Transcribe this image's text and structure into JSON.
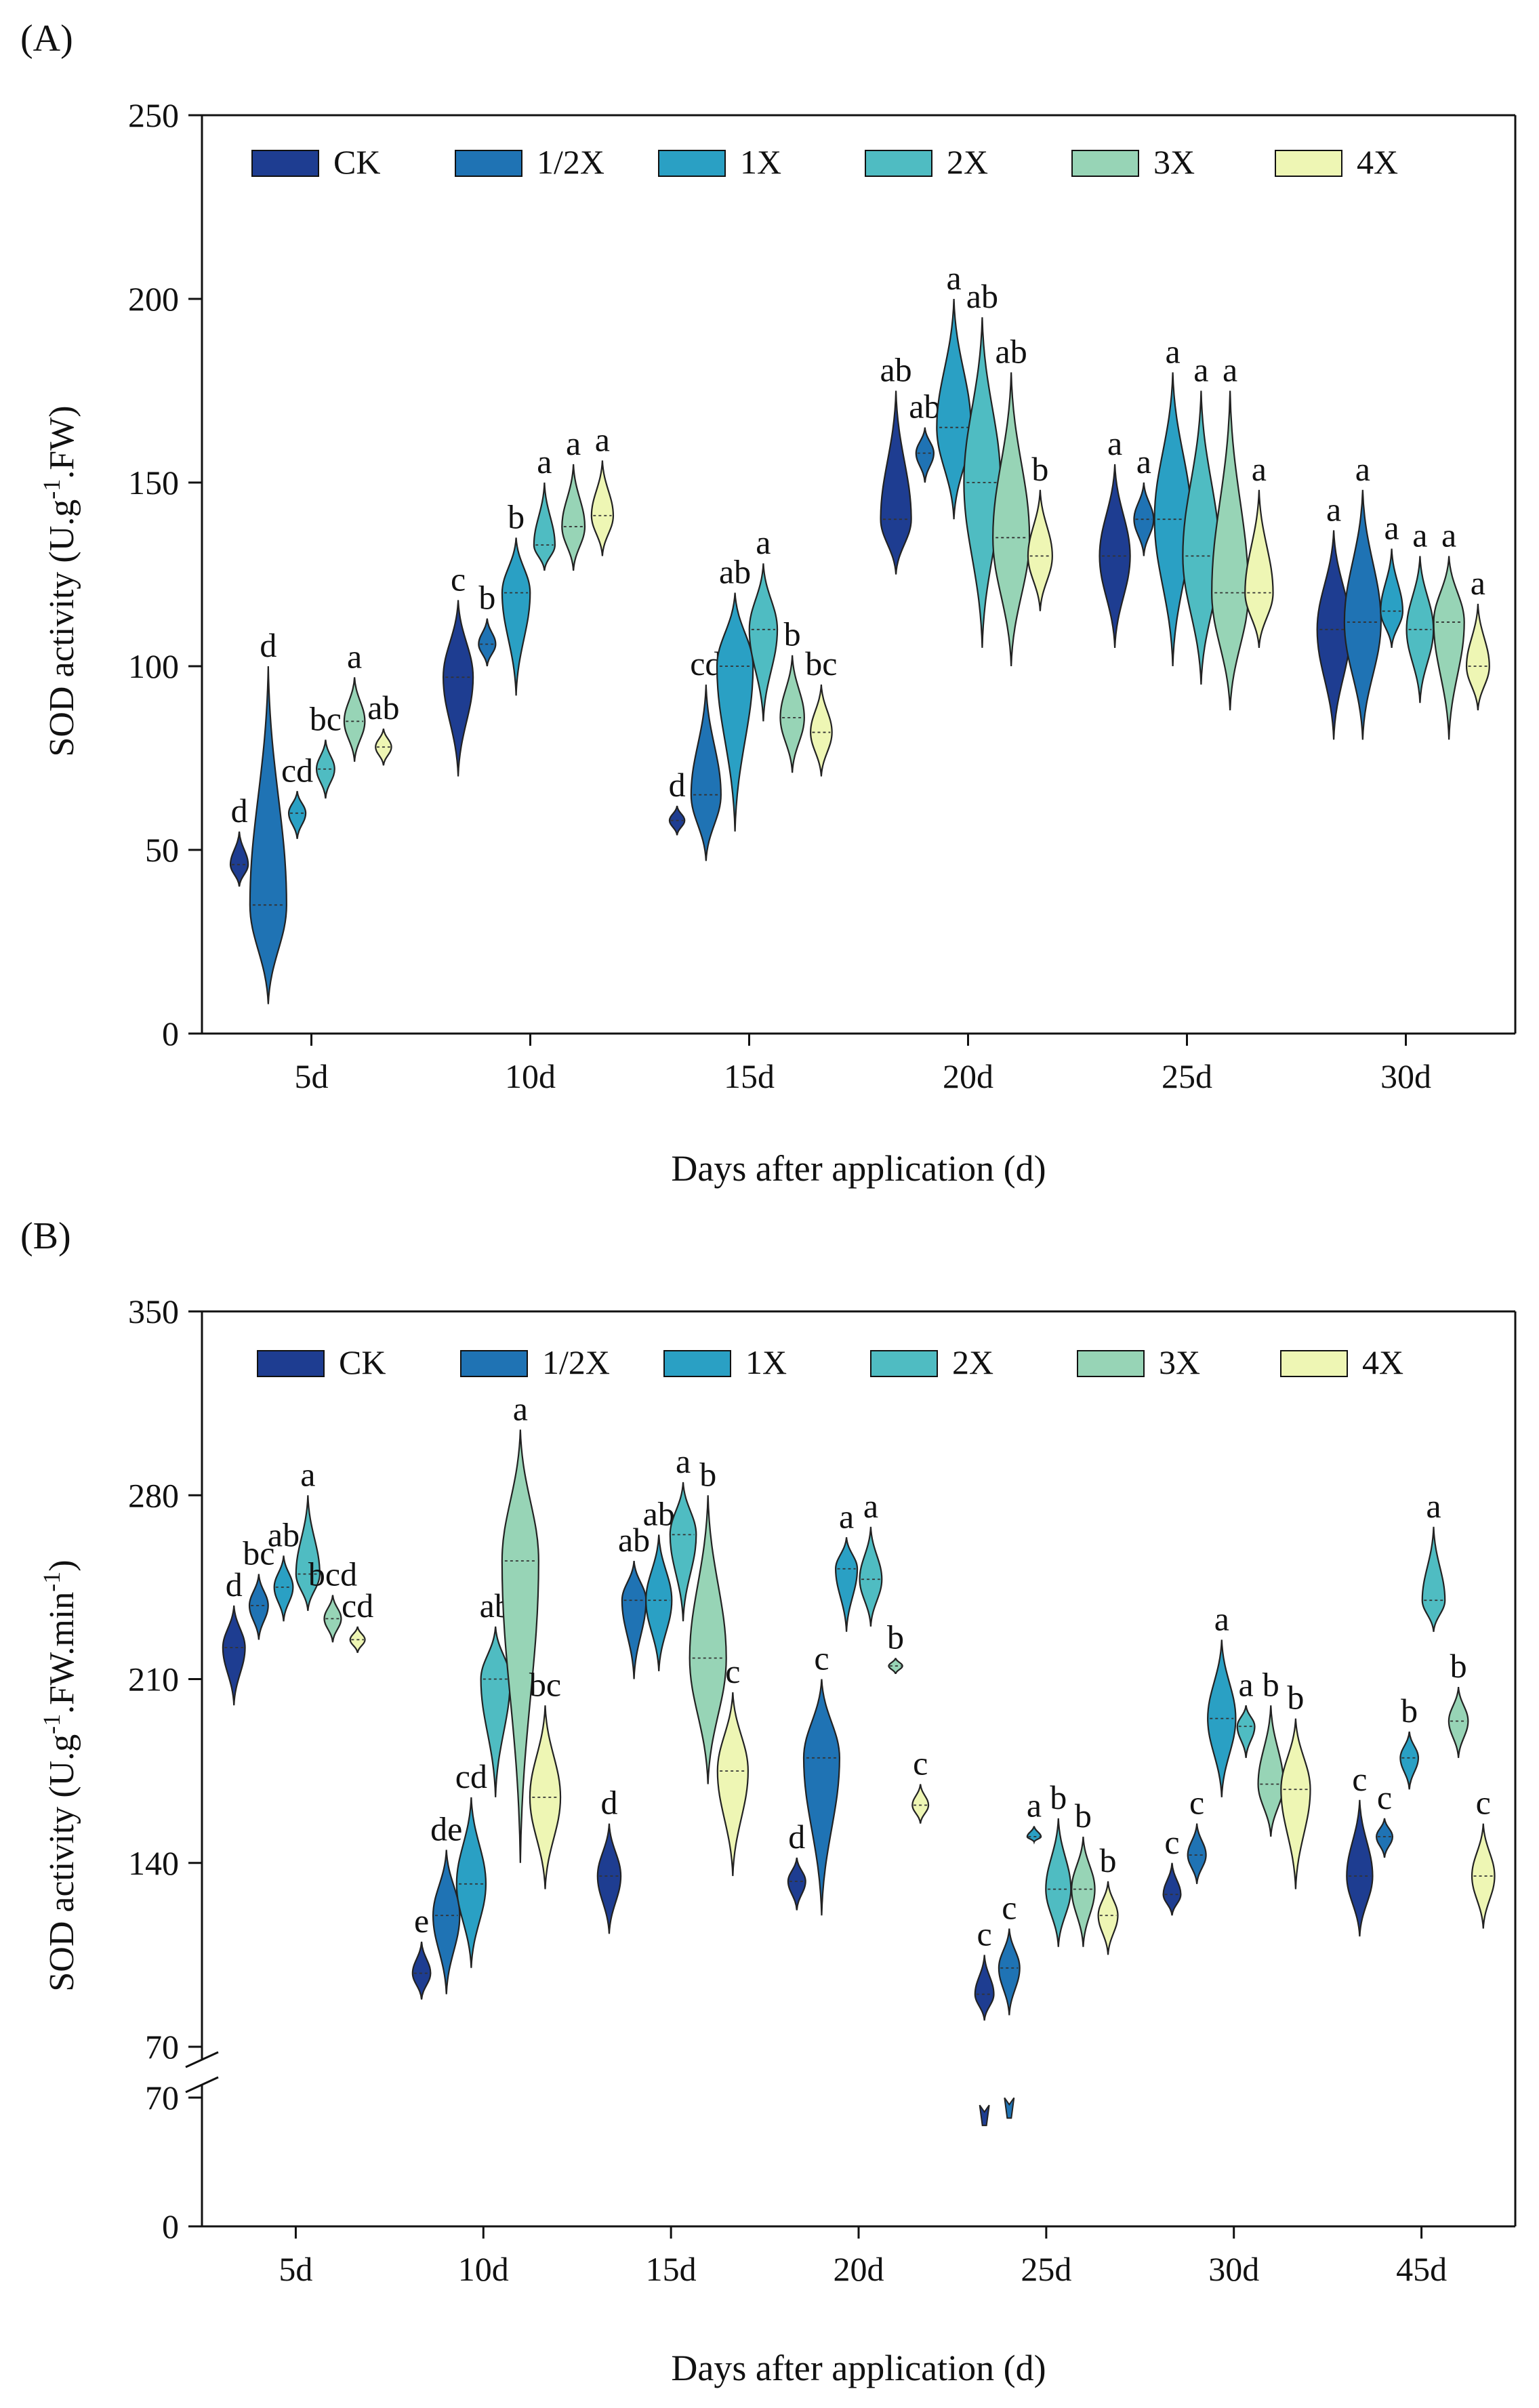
{
  "legend": [
    "CK",
    "1/2X",
    "1X",
    "2X",
    "3X",
    "4X"
  ],
  "colors": {
    "CK": "#1e3d91",
    "1/2X": "#1f73b4",
    "1X": "#2aa0c4",
    "2X": "#4fbcc2",
    "3X": "#97d4b6",
    "4X": "#eef6b4"
  },
  "chart_data": [
    {
      "panel_label": "(A)",
      "type": "violin",
      "xlabel": "Days after application (d)",
      "ylabel": "SOD activity (U.g",
      "ylabel_sup": "-1",
      "ylabel_tail": ".FW)",
      "ylim": [
        0,
        250
      ],
      "yticks": [
        "0",
        "50",
        "100",
        "150",
        "200",
        "250"
      ],
      "categories": [
        "5d",
        "10d",
        "15d",
        "20d",
        "25d",
        "30d"
      ],
      "series": [
        {
          "name": "CK",
          "medians": [
            46,
            97,
            58,
            140,
            130,
            110
          ],
          "mins": [
            40,
            70,
            54,
            125,
            105,
            80
          ],
          "maxs": [
            55,
            118,
            62,
            175,
            155,
            137
          ],
          "letters": [
            "d",
            "c",
            "d",
            "ab",
            "a",
            "a"
          ]
        },
        {
          "name": "1/2X",
          "medians": [
            35,
            106,
            65,
            158,
            140,
            112
          ],
          "mins": [
            8,
            100,
            47,
            150,
            130,
            80
          ],
          "maxs": [
            100,
            113,
            95,
            165,
            150,
            148
          ],
          "letters": [
            "d",
            "b",
            "cd",
            "ab",
            "a",
            "a"
          ]
        },
        {
          "name": "1X",
          "medians": [
            60,
            120,
            100,
            165,
            140,
            115
          ],
          "mins": [
            53,
            92,
            55,
            140,
            100,
            105
          ],
          "maxs": [
            66,
            135,
            120,
            200,
            180,
            132
          ],
          "letters": [
            "cd",
            "b",
            "ab",
            "a",
            "a",
            "a"
          ]
        },
        {
          "name": "2X",
          "medians": [
            72,
            133,
            110,
            150,
            130,
            110
          ],
          "mins": [
            64,
            126,
            85,
            105,
            95,
            90
          ],
          "maxs": [
            80,
            150,
            128,
            195,
            175,
            130
          ],
          "letters": [
            "bc",
            "a",
            "a",
            "ab",
            "a",
            "a"
          ]
        },
        {
          "name": "3X",
          "medians": [
            85,
            138,
            86,
            135,
            120,
            112
          ],
          "mins": [
            74,
            126,
            71,
            100,
            88,
            80
          ],
          "maxs": [
            97,
            155,
            103,
            180,
            175,
            130
          ],
          "letters": [
            "a",
            "a",
            "b",
            "ab",
            "a",
            "a"
          ]
        },
        {
          "name": "4X",
          "medians": [
            78,
            141,
            82,
            130,
            120,
            100
          ],
          "mins": [
            73,
            130,
            70,
            115,
            105,
            88
          ],
          "maxs": [
            83,
            156,
            95,
            148,
            148,
            117
          ],
          "letters": [
            "ab",
            "a",
            "bc",
            "b",
            "a",
            "a"
          ]
        }
      ]
    },
    {
      "panel_label": "(B)",
      "type": "violin",
      "xlabel": "Days after application (d)",
      "ylabel": "SOD activity (U.g",
      "ylabel_sup": "-1",
      "ylabel_tail": ".FW.min",
      "ylabel_sup2": "-1",
      "ylabel_end": ")",
      "axis_break": true,
      "ylim_upper": [
        70,
        350
      ],
      "ylim_lower": [
        0,
        70
      ],
      "yticks_upper": [
        "70",
        "140",
        "210",
        "280",
        "350"
      ],
      "yticks_lower": [
        "0",
        "70"
      ],
      "categories": [
        "5d",
        "10d",
        "15d",
        "20d",
        "25d",
        "30d",
        "45d"
      ],
      "series": [
        {
          "name": "CK",
          "medians": [
            222,
            98,
            135,
            133,
            90,
            128,
            135
          ],
          "mins": [
            200,
            88,
            113,
            122,
            80,
            120,
            112
          ],
          "maxs": [
            238,
            110,
            155,
            142,
            105,
            140,
            164
          ],
          "letters": [
            "d",
            "e",
            "d",
            "d",
            "c",
            "c",
            "c"
          ]
        },
        {
          "name": "1/2X",
          "medians": [
            238,
            120,
            240,
            180,
            100,
            143,
            150
          ],
          "mins": [
            225,
            90,
            210,
            120,
            82,
            132,
            142
          ],
          "maxs": [
            250,
            145,
            255,
            210,
            115,
            155,
            157
          ],
          "letters": [
            "bc",
            "de",
            "ab",
            "c",
            "c",
            "c",
            "c"
          ]
        },
        {
          "name": "1X",
          "medians": [
            245,
            132,
            240,
            252,
            150,
            195,
            180
          ],
          "mins": [
            232,
            100,
            213,
            228,
            148,
            165,
            168
          ],
          "maxs": [
            257,
            165,
            265,
            264,
            154,
            225,
            190
          ],
          "letters": [
            "ab",
            "cd",
            "ab",
            "a",
            "a",
            "a",
            "b"
          ]
        },
        {
          "name": "2X",
          "medians": [
            250,
            210,
            265,
            248,
            130,
            192,
            240
          ],
          "mins": [
            236,
            165,
            232,
            230,
            108,
            180,
            228
          ],
          "maxs": [
            280,
            230,
            285,
            268,
            157,
            200,
            268
          ],
          "letters": [
            "a",
            "ab",
            "a",
            "a",
            "b",
            "a",
            "a"
          ]
        },
        {
          "name": "3X",
          "medians": [
            233,
            255,
            218,
            215,
            130,
            170,
            194
          ],
          "mins": [
            224,
            140,
            170,
            212,
            108,
            150,
            180
          ],
          "maxs": [
            242,
            305,
            280,
            218,
            150,
            200,
            207
          ],
          "letters": [
            "bcd",
            "a",
            "b",
            "b",
            "b",
            "b",
            "b"
          ]
        },
        {
          "name": "4X",
          "medians": [
            225,
            165,
            175,
            162,
            120,
            168,
            135
          ],
          "mins": [
            220,
            130,
            135,
            155,
            105,
            130,
            115
          ],
          "maxs": [
            230,
            200,
            205,
            170,
            133,
            195,
            155
          ],
          "letters": [
            "cd",
            "bc",
            "c",
            "c",
            "b",
            "b",
            "c"
          ]
        }
      ],
      "lower_marks": [
        {
          "category": "25d",
          "series": "CK",
          "value": 60
        },
        {
          "category": "25d",
          "series": "1/2X",
          "value": 64
        }
      ]
    }
  ]
}
